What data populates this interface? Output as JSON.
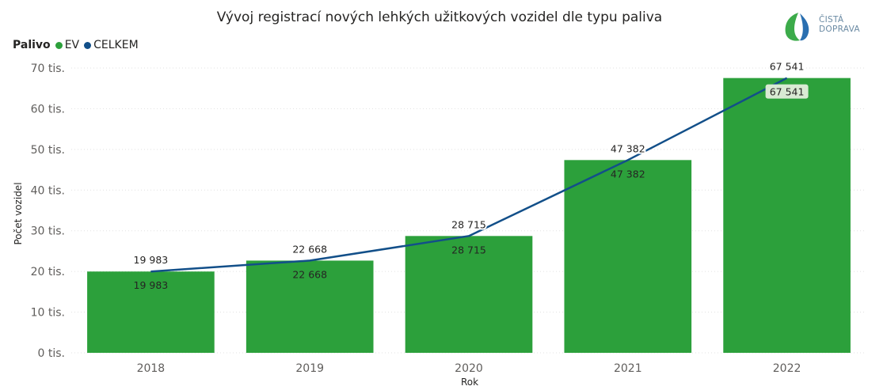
{
  "title": "Vývoj registrací nových lehkých užitkových vozidel dle typu paliva",
  "legend": {
    "title": "Palivo",
    "items": [
      {
        "label": "EV",
        "color": "#2ca03b"
      },
      {
        "label": "CELKEM",
        "color": "#124f89"
      }
    ]
  },
  "logo": {
    "line1": "ČISTÁ",
    "line2": "DOPRAVA"
  },
  "chart_data": {
    "type": "bar",
    "title": "Vývoj registrací nových lehkých užitkových vozidel dle typu paliva",
    "xlabel": "Rok",
    "ylabel": "Počet vozidel",
    "categories": [
      "2018",
      "2019",
      "2020",
      "2021",
      "2022"
    ],
    "ylim": [
      0,
      70000
    ],
    "yticks": [
      0,
      10000,
      20000,
      30000,
      40000,
      50000,
      60000,
      70000
    ],
    "ytick_labels": [
      "0 tis.",
      "10 tis.",
      "20 tis.",
      "30 tis.",
      "40 tis.",
      "50 tis.",
      "60 tis.",
      "70 tis."
    ],
    "grid": true,
    "legend_position": "top-left",
    "series": [
      {
        "name": "EV",
        "type": "bar",
        "color": "#2ca03b",
        "values": [
          19983,
          22668,
          28715,
          47382,
          67541
        ],
        "labels": [
          "19 983",
          "22 668",
          "28 715",
          "47 382",
          "67 541"
        ]
      },
      {
        "name": "CELKEM",
        "type": "line",
        "color": "#124f89",
        "values": [
          19983,
          22668,
          28715,
          47382,
          67541
        ],
        "labels": [
          "19 983",
          "22 668",
          "28 715",
          "47 382",
          "67 541"
        ]
      }
    ]
  }
}
